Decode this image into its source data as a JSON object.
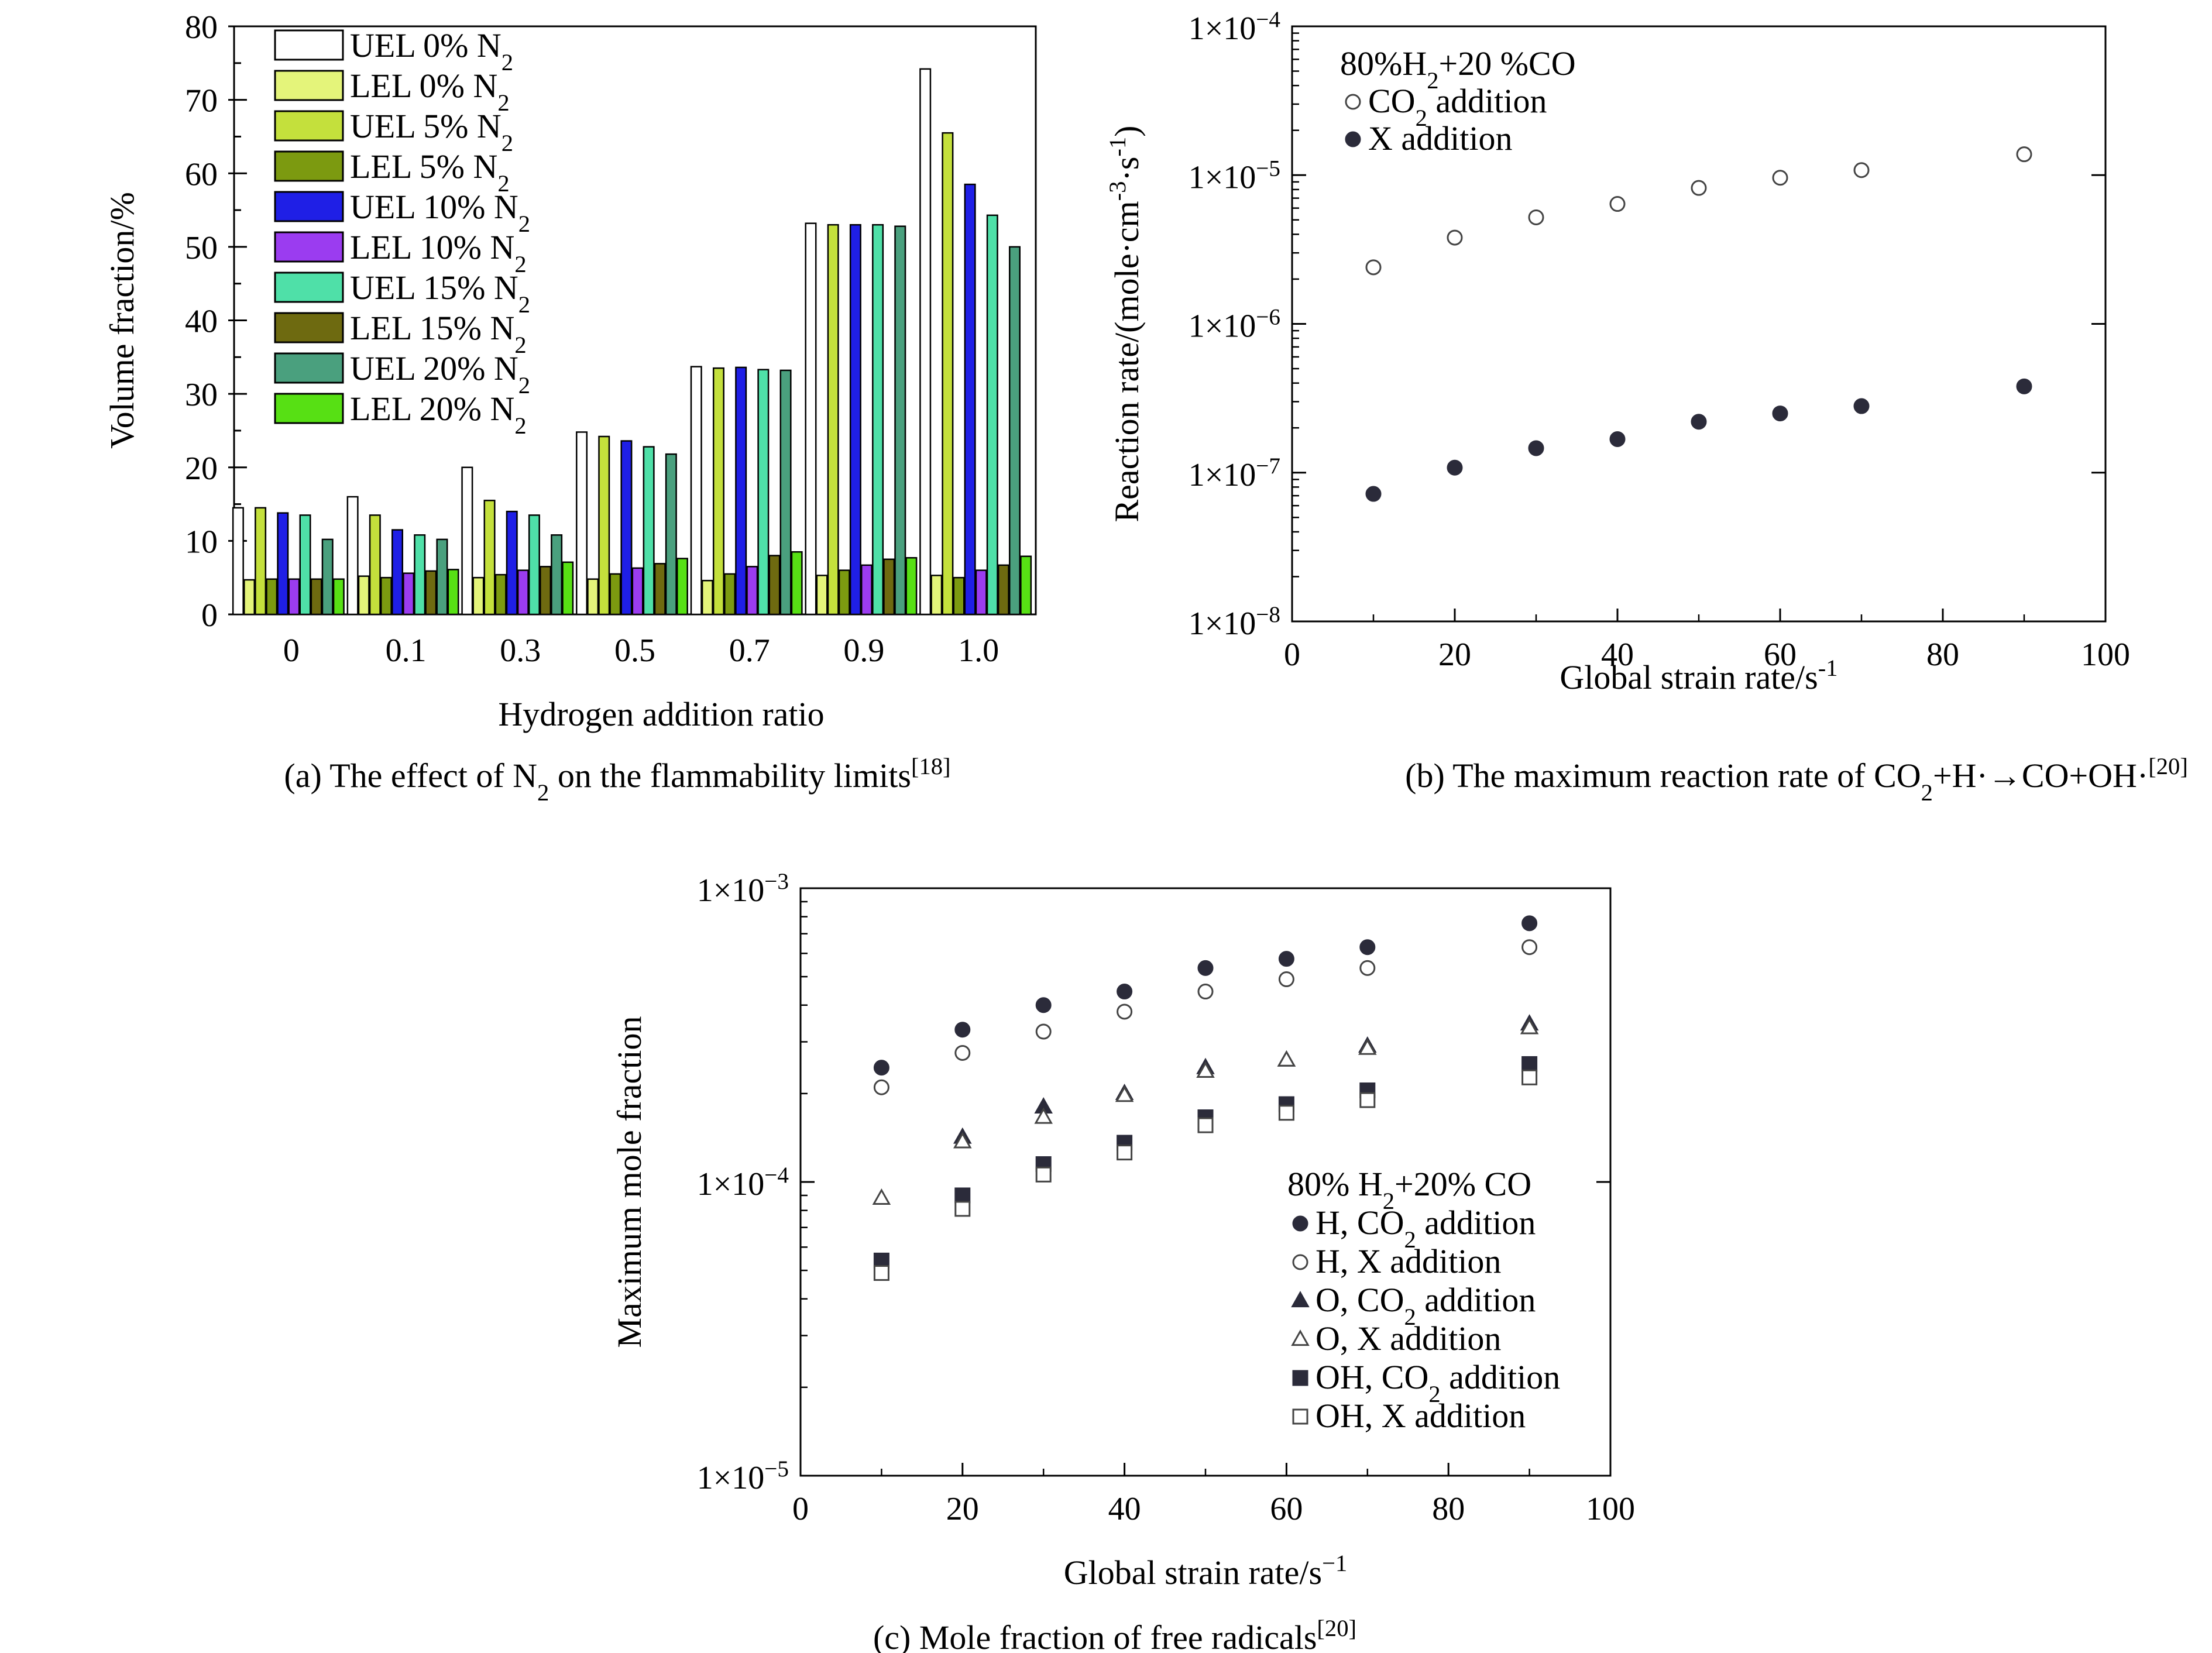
{
  "palette": {
    "UEL 0%": "#ffffff",
    "LEL 0%": "#e4f47a",
    "UEL 5%": "#c4e03c",
    "LEL 5%": "#7c9a10",
    "UEL 10%": "#1f1fe6",
    "LEL 10%": "#9b3cf0",
    "UEL 15%": "#4fe0a8",
    "LEL 15%": "#6e6a10",
    "UEL 20%": "#4aa07e",
    "LEL 20%": "#57e014",
    "marker": "#2b2b3a"
  },
  "chart_data": [
    {
      "id": "a",
      "type": "bar",
      "xlabel": "Hydrogen addition ratio",
      "ylabel": "Volume fraction/%",
      "ylim": [
        0,
        80
      ],
      "yticks": [
        "0",
        "10",
        "20",
        "30",
        "40",
        "50",
        "60",
        "70",
        "80"
      ],
      "categories": [
        "0",
        "0.1",
        "0.3",
        "0.5",
        "0.7",
        "0.9",
        "1.0"
      ],
      "series": [
        {
          "name": "UEL 0% N",
          "sub": "2",
          "values": [
            14.5,
            16,
            20,
            24.8,
            33.7,
            53.2,
            74.2
          ]
        },
        {
          "name": "LEL 0% N",
          "sub": "2",
          "values": [
            4.7,
            5.2,
            5,
            4.8,
            4.6,
            5.3,
            5.3
          ]
        },
        {
          "name": "UEL 5% N",
          "sub": "2",
          "values": [
            14.5,
            13.5,
            15.5,
            24.2,
            33.5,
            53,
            65.5
          ]
        },
        {
          "name": "LEL 5% N",
          "sub": "2",
          "values": [
            4.8,
            5,
            5.4,
            5.5,
            5.5,
            6,
            5
          ]
        },
        {
          "name": "UEL 10% N",
          "sub": "2",
          "values": [
            13.8,
            11.5,
            14,
            23.6,
            33.6,
            53,
            58.5
          ]
        },
        {
          "name": "LEL 10% N",
          "sub": "2",
          "values": [
            4.8,
            5.6,
            6,
            6.3,
            6.5,
            6.7,
            6
          ]
        },
        {
          "name": "UEL 15% N",
          "sub": "2",
          "values": [
            13.5,
            10.8,
            13.5,
            22.8,
            33.3,
            53,
            54.3
          ]
        },
        {
          "name": "LEL 15% N",
          "sub": "2",
          "values": [
            4.8,
            5.9,
            6.5,
            6.9,
            8,
            7.5,
            6.7
          ]
        },
        {
          "name": "UEL 20% N",
          "sub": "2",
          "values": [
            10.2,
            10.2,
            10.8,
            21.8,
            33.2,
            52.8,
            50
          ]
        },
        {
          "name": "LEL 20% N",
          "sub": "2",
          "values": [
            4.8,
            6.1,
            7.1,
            7.6,
            8.5,
            7.7,
            7.9
          ]
        }
      ],
      "caption": "(a) The effect of N",
      "caption_sub": "2",
      "caption_tail": " on the flammability limits",
      "caption_ref": "[18]"
    },
    {
      "id": "b",
      "type": "scatter",
      "xlabel": "Global strain rate/s",
      "xlabel_sup": "-1",
      "ylabel_parts": [
        "Reaction rate/(mole·cm",
        "-3",
        "·s",
        "-1",
        ")"
      ],
      "xlim": [
        0,
        100
      ],
      "xticks": [
        "0",
        "20",
        "40",
        "60",
        "80",
        "100"
      ],
      "ylim": [
        1e-08,
        0.0001
      ],
      "yscale": "log",
      "ytick_exps": [
        "−8",
        "−7",
        "−6",
        "−5",
        "−4"
      ],
      "ytick_base": "1×10",
      "legend_title": "80%H",
      "legend_title_sub": "2",
      "legend_title_tail": "+20 %CO",
      "series": [
        {
          "name": "CO",
          "sub": "2",
          "tail": " addition",
          "marker": "open-circle",
          "x": [
            10,
            20,
            30,
            40,
            50,
            60,
            70,
            90
          ],
          "y": [
            2.4e-06,
            3.8e-06,
            5.2e-06,
            6.4e-06,
            8.2e-06,
            9.6e-06,
            1.08e-05,
            1.38e-05
          ]
        },
        {
          "name": "X addition",
          "sub": "",
          "tail": "",
          "marker": "filled-circle",
          "x": [
            10,
            20,
            30,
            40,
            50,
            60,
            70,
            90
          ],
          "y": [
            7.2e-08,
            1.08e-07,
            1.46e-07,
            1.68e-07,
            2.2e-07,
            2.5e-07,
            2.8e-07,
            3.8e-07
          ]
        }
      ],
      "caption": "(b) The maximum reaction rate of CO",
      "caption_sub": "2",
      "caption_tail": "+H·→CO+OH·",
      "caption_ref": "[20]"
    },
    {
      "id": "c",
      "type": "scatter",
      "xlabel": "Global strain rate/s",
      "xlabel_sup": "−1",
      "ylabel": "Maximum mole fraction",
      "xlim": [
        0,
        100
      ],
      "xticks": [
        "0",
        "20",
        "40",
        "60",
        "80",
        "100"
      ],
      "ylim": [
        1e-05,
        0.001
      ],
      "yscale": "log",
      "ytick_exps": [
        "−5",
        "−4",
        "−3"
      ],
      "ytick_base": "1×10",
      "legend_title": "80% H",
      "legend_title_sub": "2",
      "legend_title_tail": "+20% CO",
      "series": [
        {
          "name": "H, CO",
          "sub": "2",
          "tail": " addition",
          "marker": "filled-circle",
          "x": [
            10,
            20,
            30,
            40,
            50,
            60,
            70,
            90
          ],
          "y": [
            0.000245,
            0.00033,
            0.0004,
            0.000445,
            0.000535,
            0.000575,
            0.00063,
            0.00076
          ]
        },
        {
          "name": "H, X addition",
          "sub": "",
          "tail": "",
          "marker": "open-circle",
          "x": [
            10,
            20,
            30,
            40,
            50,
            60,
            70,
            90
          ],
          "y": [
            0.00021,
            0.000275,
            0.000325,
            0.00038,
            0.000445,
            0.00049,
            0.000535,
            0.00063
          ]
        },
        {
          "name": "O, CO",
          "sub": "2",
          "tail": " addition",
          "marker": "filled-triangle",
          "x": [
            20,
            30,
            40,
            50,
            60,
            70,
            90
          ],
          "y": [
            0.000142,
            0.00018,
            0.0002,
            0.000245,
            0.00026,
            0.00029,
            0.000345
          ]
        },
        {
          "name": "O, X addition",
          "sub": "",
          "tail": "",
          "marker": "open-triangle",
          "x": [
            10,
            20,
            30,
            40,
            50,
            60,
            70,
            90
          ],
          "y": [
            8.8e-05,
            0.000137,
            0.000166,
            0.000197,
            0.000238,
            0.00026,
            0.000285,
            0.000335
          ]
        },
        {
          "name": "OH, CO",
          "sub": "2",
          "tail": " addition",
          "marker": "filled-square",
          "x": [
            10,
            20,
            30,
            40,
            50,
            60,
            70,
            90
          ],
          "y": [
            5.4e-05,
            9e-05,
            0.000115,
            0.000136,
            0.000166,
            0.000184,
            0.000205,
            0.000252
          ]
        },
        {
          "name": "OH, X addition",
          "sub": "",
          "tail": "",
          "marker": "open-square",
          "x": [
            10,
            20,
            30,
            40,
            50,
            60,
            70,
            90
          ],
          "y": [
            4.9e-05,
            8.1e-05,
            0.000106,
            0.000126,
            0.000156,
            0.000172,
            0.00019,
            0.000227
          ]
        }
      ],
      "caption": "(c) Mole fraction of free radicals",
      "caption_ref": "[20]"
    }
  ]
}
